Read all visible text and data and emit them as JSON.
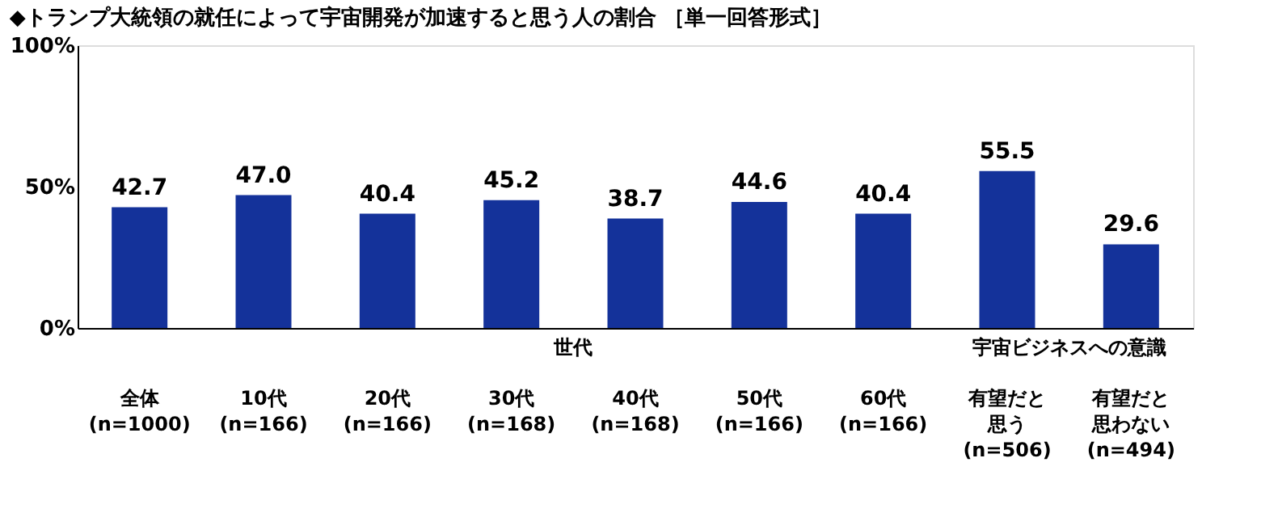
{
  "chart_data": {
    "type": "bar",
    "title": "◆トランプ大統領の就任によって宇宙開発が加速すると思う人の割合 ［単一回答形式］",
    "categories": [
      "全体\n\n(n=1000)",
      "10代\n\n(n=166)",
      "20代\n\n(n=166)",
      "30代\n\n(n=168)",
      "40代\n\n(n=168)",
      "50代\n\n(n=166)",
      "60代\n\n(n=166)",
      "有望だと思う\n(n=506)",
      "有望だと思わない\n(n=494)"
    ],
    "value_labels": [
      "42.7",
      "47.0",
      "40.4",
      "45.2",
      "38.7",
      "44.6",
      "40.4",
      "55.5",
      "29.6"
    ],
    "values": [
      42.7,
      47.0,
      40.4,
      45.2,
      38.7,
      44.6,
      40.4,
      55.5,
      29.6
    ],
    "color": "#14329a",
    "ylim": [
      0,
      100
    ],
    "yticks": [
      {
        "value": 0,
        "label": "0%"
      },
      {
        "value": 50,
        "label": "50%"
      },
      {
        "value": 100,
        "label": "100%"
      }
    ],
    "grid": false,
    "annotations": [
      "世代",
      "宇宙ビジネスへの意識"
    ]
  }
}
